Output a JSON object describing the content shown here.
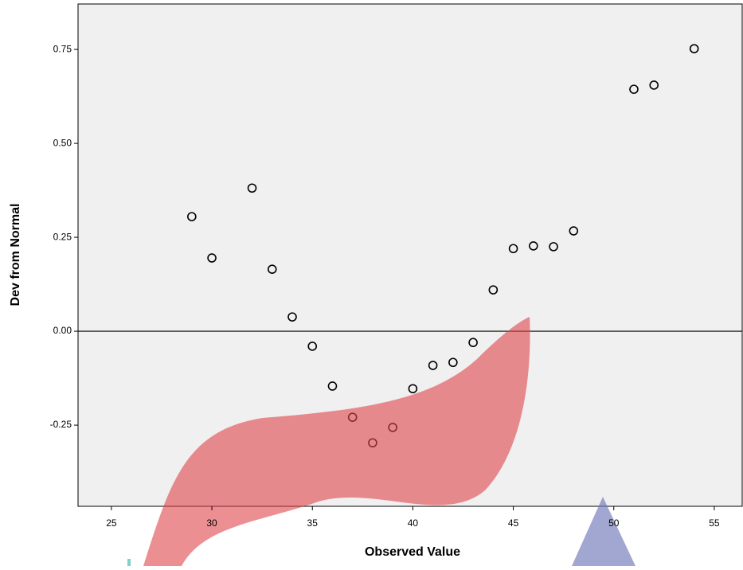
{
  "chart_data": {
    "type": "scatter",
    "x_label": "Observed Value",
    "y_label": "Dev from Normal",
    "x": [
      29,
      30,
      32,
      33,
      34,
      35,
      36,
      37,
      38,
      39,
      40,
      41,
      42,
      43,
      44,
      45,
      46,
      47,
      48,
      51,
      52,
      54
    ],
    "values": [
      0.305,
      0.195,
      0.381,
      0.165,
      0.038,
      -0.04,
      -0.146,
      -0.229,
      -0.297,
      -0.256,
      -0.153,
      -0.091,
      -0.083,
      -0.03,
      0.11,
      0.22,
      0.227,
      0.225,
      0.267,
      0.644,
      0.655,
      0.752
    ],
    "color": "#000000",
    "xlim": [
      23.34,
      56.39
    ],
    "ylim": [
      -0.466,
      0.871
    ],
    "xticks": [
      25,
      30,
      35,
      40,
      45,
      50,
      55
    ],
    "yticks": [
      {
        "value": 0.75,
        "label": "0.75"
      },
      {
        "value": 0.5,
        "label": "0.50"
      },
      {
        "value": 0.25,
        "label": "0.25"
      },
      {
        "value": 0,
        "label": "0.00"
      },
      {
        "value": -0.25,
        "label": "-0.25"
      }
    ],
    "reference_line": 0
  }
}
